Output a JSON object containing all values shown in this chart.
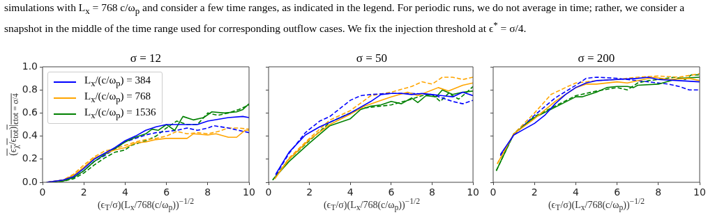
{
  "chart_data": [
    {
      "type": "line",
      "title": "σ = 12",
      "xlabel": "(ϵ$_{T}$/σ)(L$_{x}$/768(c/ω$_{p}$))$^{−1/2}$",
      "ylabel": "(ϵ$_{χ}$/ϵ$_{tot}$)|$_{ϵtot = σ/4}$",
      "annotations": [
        "simulations with L$_{x}$ = 768 c/ω$_{p}$ and consider a few time ranges, as indicated in the legend. For periodic runs, we do not average in time; rather, we consider a snapshot in the middle of the time range used for corresponding outflow cases. We fix the injection threshold at ϵ$^{*}$ = σ/4."
      ],
      "xlim": [
        0,
        10
      ],
      "xticks": [
        0,
        2,
        4,
        6,
        8,
        10
      ],
      "ylim": [
        0,
        1
      ],
      "yticks": [
        {
          "value": 0,
          "label": "0.0"
        },
        0.2,
        0.4,
        0.6,
        0.8,
        {
          "value": 1,
          "label": "1.0"
        }
      ],
      "legend": "top left",
      "series": [
        {
          "name": "L$_{x}$/(c/ω$_{p}$) = 384",
          "color": "#0000ff",
          "line_style": "solid",
          "x": [
            0.2,
            1,
            1.5,
            2,
            2.5,
            3,
            3.5,
            4,
            4.5,
            5,
            5.5,
            6,
            6.5,
            7,
            7.5,
            8,
            9,
            9.7,
            10
          ],
          "values": [
            0,
            0.02,
            0.05,
            0.12,
            0.2,
            0.25,
            0.3,
            0.36,
            0.4,
            0.45,
            0.48,
            0.5,
            0.5,
            0.5,
            0.5,
            0.53,
            0.56,
            0.57,
            0.56
          ]
        },
        {
          "name": "L$_{x}$/(c/ω$_{p}$) = 768",
          "color": "#ffa500",
          "line_style": "solid",
          "x": [
            0.2,
            1,
            1.5,
            2,
            2.5,
            3,
            3.5,
            4,
            4.5,
            5,
            5.5,
            6,
            6.5,
            7,
            7.3,
            8,
            8.4,
            9,
            9.4,
            9.8,
            10
          ],
          "values": [
            0,
            0.02,
            0.06,
            0.13,
            0.21,
            0.25,
            0.28,
            0.3,
            0.34,
            0.35,
            0.37,
            0.38,
            0.38,
            0.38,
            0.42,
            0.41,
            0.42,
            0.39,
            0.39,
            0.45,
            0.45
          ]
        },
        {
          "name": "L$_{x}$/(c/ω$_{p}$) = 1536",
          "color": "#008000",
          "line_style": "solid",
          "x": [
            0.2,
            1,
            1.5,
            2,
            2.5,
            3,
            3.5,
            4,
            4.5,
            5,
            5.3,
            5.6,
            6,
            6.4,
            6.8,
            7.3,
            7.8,
            8.2,
            8.8,
            9.4,
            9.7,
            10
          ],
          "values": [
            0,
            0.01,
            0.04,
            0.1,
            0.18,
            0.24,
            0.29,
            0.35,
            0.39,
            0.42,
            0.46,
            0.45,
            0.5,
            0.45,
            0.57,
            0.54,
            0.56,
            0.61,
            0.6,
            0.61,
            0.63,
            0.68
          ]
        },
        {
          "color": "#0000ff",
          "line_style": "dashed",
          "x": [
            0.2,
            1,
            1.5,
            2,
            2.5,
            3,
            3.5,
            4,
            4.5,
            5,
            5.5,
            6,
            6.5,
            7,
            7.5,
            8,
            8.3,
            9,
            9.5,
            10
          ],
          "values": [
            0,
            0.02,
            0.04,
            0.1,
            0.18,
            0.23,
            0.29,
            0.35,
            0.38,
            0.41,
            0.43,
            0.44,
            0.45,
            0.47,
            0.45,
            0.47,
            0.49,
            0.47,
            0.45,
            0.43
          ]
        },
        {
          "color": "#ffa500",
          "line_style": "dashed",
          "x": [
            0.2,
            1,
            1.5,
            2,
            2.5,
            3,
            3.5,
            4,
            4.5,
            5,
            5.5,
            6,
            6.5,
            7,
            7.5,
            8,
            8.5,
            9,
            9.5,
            10
          ],
          "values": [
            0,
            0.02,
            0.07,
            0.15,
            0.22,
            0.27,
            0.29,
            0.32,
            0.35,
            0.37,
            0.38,
            0.4,
            0.44,
            0.42,
            0.43,
            0.42,
            0.44,
            0.47,
            0.47,
            0.46
          ]
        },
        {
          "color": "#008000",
          "line_style": "dashed",
          "x": [
            0.2,
            1,
            1.5,
            2,
            2.5,
            3,
            3.5,
            4,
            4.3,
            5,
            5.5,
            6,
            6.5,
            7,
            7.5,
            8,
            8.5,
            9,
            9.5,
            10
          ],
          "values": [
            0,
            0.01,
            0.03,
            0.08,
            0.15,
            0.21,
            0.26,
            0.28,
            0.32,
            0.36,
            0.4,
            0.47,
            0.53,
            0.5,
            0.5,
            0.6,
            0.58,
            0.6,
            0.63,
            0.67
          ]
        }
      ]
    },
    {
      "type": "line",
      "title": "σ = 50",
      "xlabel": "(ϵ$_{T}$/σ)(L$_{x}$/768(c/ω$_{p}$))$^{−1/2}$",
      "xlim": [
        0,
        10
      ],
      "xticks": [
        0,
        2,
        4,
        6,
        8,
        10
      ],
      "ylim": [
        0,
        1
      ],
      "yticks": [
        0,
        0.2,
        0.4,
        0.6,
        0.8,
        1
      ],
      "tick_labels": "x",
      "series": [
        {
          "color": "#0000ff",
          "line_style": "solid",
          "x": [
            0.35,
            1,
            1.8,
            2.5,
            3,
            4,
            5,
            5.5,
            6,
            6.5,
            7,
            7.5,
            8,
            8.5,
            9,
            9.5,
            10
          ],
          "values": [
            0.07,
            0.26,
            0.41,
            0.48,
            0.52,
            0.6,
            0.7,
            0.76,
            0.77,
            0.77,
            0.76,
            0.77,
            0.76,
            0.75,
            0.74,
            0.78,
            0.75
          ]
        },
        {
          "color": "#ffa500",
          "line_style": "solid",
          "x": [
            0.3,
            1,
            2,
            3,
            4,
            4.7,
            5.5,
            6,
            6.8,
            7.3,
            8.3,
            8.8,
            9.5,
            10
          ],
          "values": [
            0.03,
            0.2,
            0.37,
            0.5,
            0.59,
            0.66,
            0.71,
            0.74,
            0.78,
            0.75,
            0.82,
            0.79,
            0.84,
            0.86
          ]
        },
        {
          "color": "#008000",
          "line_style": "solid",
          "x": [
            0.2,
            1,
            2,
            3,
            4,
            4.5,
            5,
            5.5,
            6,
            6.5,
            7,
            7.3,
            7.7,
            8.2,
            8.5,
            9,
            9.5,
            10
          ],
          "values": [
            0.02,
            0.18,
            0.34,
            0.49,
            0.55,
            0.63,
            0.66,
            0.67,
            0.7,
            0.68,
            0.73,
            0.69,
            0.75,
            0.74,
            0.8,
            0.76,
            0.78,
            0.79
          ]
        },
        {
          "color": "#0000ff",
          "line_style": "dashed",
          "x": [
            0.35,
            1,
            1.8,
            2.5,
            3,
            4,
            4.5,
            5,
            6,
            7,
            8,
            8.5,
            9,
            9.5,
            10
          ],
          "values": [
            0.06,
            0.25,
            0.43,
            0.53,
            0.57,
            0.71,
            0.75,
            0.76,
            0.77,
            0.77,
            0.76,
            0.73,
            0.7,
            0.68,
            0.71
          ]
        },
        {
          "color": "#ffa500",
          "line_style": "dashed",
          "x": [
            0.3,
            1,
            2,
            3,
            4,
            5,
            6,
            7,
            7.5,
            8,
            8.5,
            9,
            9.5,
            10
          ],
          "values": [
            0.03,
            0.21,
            0.38,
            0.54,
            0.62,
            0.75,
            0.78,
            0.83,
            0.87,
            0.85,
            0.91,
            0.91,
            0.89,
            0.91
          ]
        },
        {
          "color": "#008000",
          "line_style": "dashed",
          "x": [
            0.2,
            1,
            2,
            3,
            4,
            4.5,
            5,
            6,
            7,
            7.5,
            8,
            8.4,
            8.8,
            9.3,
            9.7,
            10
          ],
          "values": [
            0.02,
            0.2,
            0.36,
            0.52,
            0.6,
            0.64,
            0.65,
            0.67,
            0.72,
            0.75,
            0.76,
            0.7,
            0.77,
            0.72,
            0.78,
            0.83
          ]
        }
      ]
    },
    {
      "type": "line",
      "title": "σ = 200",
      "xlabel": "(ϵ$_{T}$/σ)(L$_{x}$/768(c/ω$_{p}$))$^{−1/2}$",
      "xlim": [
        0,
        10
      ],
      "xticks": [
        0,
        2,
        4,
        6,
        8,
        10
      ],
      "ylim": [
        0,
        1
      ],
      "yticks": [
        0,
        0.2,
        0.4,
        0.6,
        0.8,
        1
      ],
      "tick_labels": "x",
      "series": [
        {
          "color": "#0000ff",
          "line_style": "solid",
          "x": [
            0.35,
            1,
            1.5,
            2,
            2.5,
            3,
            3.5,
            4,
            4.5,
            5,
            6,
            7,
            7.5,
            8,
            9,
            10
          ],
          "values": [
            0.24,
            0.41,
            0.46,
            0.51,
            0.58,
            0.68,
            0.76,
            0.82,
            0.86,
            0.88,
            0.89,
            0.9,
            0.91,
            0.89,
            0.88,
            0.87
          ]
        },
        {
          "color": "#ffa500",
          "line_style": "solid",
          "x": [
            0.2,
            1,
            2,
            3,
            4,
            4.5,
            5,
            6,
            6.5,
            7,
            7.8,
            8.5,
            9.5,
            10
          ],
          "values": [
            0.16,
            0.42,
            0.55,
            0.7,
            0.82,
            0.85,
            0.85,
            0.87,
            0.86,
            0.88,
            0.91,
            0.89,
            0.9,
            0.88
          ]
        },
        {
          "color": "#008000",
          "line_style": "solid",
          "x": [
            0.15,
            1,
            2,
            3,
            4,
            4.3,
            5,
            5.5,
            6,
            6.5,
            6.8,
            7,
            8,
            9,
            10
          ],
          "values": [
            0.1,
            0.42,
            0.56,
            0.65,
            0.74,
            0.74,
            0.78,
            0.82,
            0.83,
            0.83,
            0.82,
            0.84,
            0.85,
            0.9,
            0.91
          ]
        },
        {
          "color": "#0000ff",
          "line_style": "dashed",
          "x": [
            0.35,
            1,
            2,
            3,
            4,
            4.5,
            5,
            6,
            7,
            8,
            8.5,
            9,
            9.5,
            10
          ],
          "values": [
            0.23,
            0.41,
            0.58,
            0.73,
            0.84,
            0.9,
            0.91,
            0.9,
            0.88,
            0.86,
            0.85,
            0.83,
            0.8,
            0.8
          ]
        },
        {
          "color": "#ffa500",
          "line_style": "dashed",
          "x": [
            0.2,
            1,
            2,
            2.8,
            3.5,
            4,
            5,
            6,
            7,
            8,
            9,
            10
          ],
          "values": [
            0.16,
            0.42,
            0.6,
            0.76,
            0.82,
            0.86,
            0.88,
            0.89,
            0.91,
            0.92,
            0.91,
            0.94
          ]
        },
        {
          "color": "#008000",
          "line_style": "dashed",
          "x": [
            0.15,
            1,
            2,
            3,
            4,
            5,
            6,
            6.5,
            7,
            7.5,
            8,
            8.8,
            9.3,
            9.6,
            10
          ],
          "values": [
            0.1,
            0.42,
            0.57,
            0.66,
            0.75,
            0.79,
            0.82,
            0.8,
            0.86,
            0.88,
            0.89,
            0.91,
            0.89,
            0.93,
            0.93
          ]
        }
      ]
    }
  ]
}
